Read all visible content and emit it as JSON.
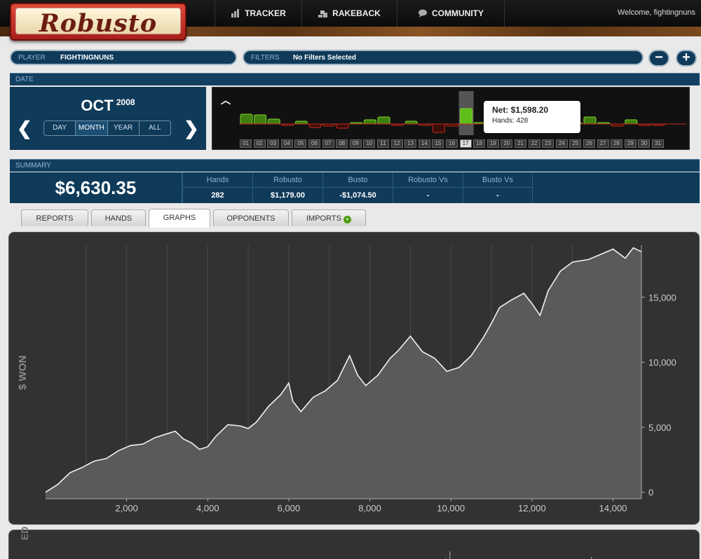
{
  "app": {
    "logo": "Robusto",
    "welcome": "Welcome, fightingnuns"
  },
  "nav": [
    {
      "label": "TRACKER",
      "icon": "bar-chart-icon"
    },
    {
      "label": "RAKEBACK",
      "icon": "chips-icon"
    },
    {
      "label": "COMMUNITY",
      "icon": "chat-icon"
    }
  ],
  "player": {
    "label": "PLAYER",
    "value": "FIGHTINGNUNS"
  },
  "filters": {
    "label": "FILTERS",
    "value": "No Filters Selected"
  },
  "buttons": {
    "minus": "−",
    "plus": "+"
  },
  "date": {
    "section": "DATE",
    "month": "OCT",
    "year": "2008",
    "ranges": [
      "DAY",
      "MONTH",
      "YEAR",
      "ALL"
    ],
    "active_range": "MONTH",
    "prev": "❮",
    "next": "❯",
    "collapse": "︿"
  },
  "calendar": {
    "days": [
      "01",
      "02",
      "03",
      "04",
      "05",
      "06",
      "07",
      "08",
      "09",
      "10",
      "11",
      "12",
      "13",
      "14",
      "15",
      "16",
      "17",
      "18",
      "19",
      "20",
      "21",
      "22",
      "23",
      "24",
      "25",
      "26",
      "27",
      "28",
      "29",
      "30",
      "31"
    ],
    "selected": "17",
    "net": [
      28,
      26,
      14,
      -2,
      8,
      -10,
      -6,
      -12,
      4,
      12,
      20,
      -3,
      8,
      -4,
      -24,
      -6,
      44,
      0,
      0,
      2,
      40,
      22,
      -3,
      -4,
      0,
      20,
      0,
      -6,
      12,
      -2,
      -2
    ],
    "colors": {
      "win": "#4f9d12",
      "loss": "#c82a1c"
    }
  },
  "tooltip": {
    "net": "Net: $1,598.20",
    "hands": "Hands: 428"
  },
  "summary": {
    "section": "SUMMARY",
    "total": "$6,630.35",
    "columns": [
      {
        "h": "Hands",
        "v": "282"
      },
      {
        "h": "Robusto",
        "v": "$1,179.00"
      },
      {
        "h": "Busto",
        "v": "-$1,074.50"
      },
      {
        "h": "Robusto Vs",
        "v": "-"
      },
      {
        "h": "Busto Vs",
        "v": "-"
      }
    ]
  },
  "tabs": [
    "REPORTS",
    "HANDS",
    "GRAPHS",
    "OPPONENTS",
    "IMPORTS"
  ],
  "active_tab": "GRAPHS",
  "chart_data": {
    "type": "line",
    "ylabel": "$ WON",
    "xlim": [
      0,
      14700
    ],
    "ylim": [
      -500,
      19000
    ],
    "xticks": [
      2000,
      4000,
      6000,
      8000,
      10000,
      12000,
      14000
    ],
    "xticklabels": [
      "2,000",
      "4,000",
      "6,000",
      "8,000",
      "10,000",
      "12,000",
      "14,000"
    ],
    "yticks": [
      0,
      5000,
      10000,
      15000
    ],
    "yticklabels": [
      "0",
      "5,000",
      "10,000",
      "15,000"
    ],
    "grid": "vertical",
    "series": [
      {
        "values": [
          [
            0,
            0
          ],
          [
            300,
            600
          ],
          [
            600,
            1500
          ],
          [
            900,
            1900
          ],
          [
            1200,
            2400
          ],
          [
            1500,
            2600
          ],
          [
            1800,
            3200
          ],
          [
            2100,
            3600
          ],
          [
            2400,
            3700
          ],
          [
            2700,
            4200
          ],
          [
            3000,
            4500
          ],
          [
            3200,
            4700
          ],
          [
            3400,
            4100
          ],
          [
            3600,
            3800
          ],
          [
            3800,
            3300
          ],
          [
            4000,
            3500
          ],
          [
            4200,
            4300
          ],
          [
            4500,
            5200
          ],
          [
            4800,
            5100
          ],
          [
            5000,
            4900
          ],
          [
            5200,
            5400
          ],
          [
            5500,
            6600
          ],
          [
            5800,
            7500
          ],
          [
            6000,
            8400
          ],
          [
            6100,
            7000
          ],
          [
            6300,
            6200
          ],
          [
            6600,
            7300
          ],
          [
            6900,
            7800
          ],
          [
            7200,
            8600
          ],
          [
            7500,
            10500
          ],
          [
            7700,
            9000
          ],
          [
            7900,
            8200
          ],
          [
            8200,
            9000
          ],
          [
            8500,
            10300
          ],
          [
            8700,
            10900
          ],
          [
            9000,
            12000
          ],
          [
            9300,
            10800
          ],
          [
            9600,
            10300
          ],
          [
            9900,
            9300
          ],
          [
            10200,
            9600
          ],
          [
            10500,
            10500
          ],
          [
            10800,
            11900
          ],
          [
            11000,
            13000
          ],
          [
            11200,
            14200
          ],
          [
            11500,
            14800
          ],
          [
            11800,
            15300
          ],
          [
            12000,
            14500
          ],
          [
            12200,
            13600
          ],
          [
            12400,
            15500
          ],
          [
            12700,
            17000
          ],
          [
            13000,
            17700
          ],
          [
            13400,
            17900
          ],
          [
            13700,
            18300
          ],
          [
            14000,
            18700
          ],
          [
            14300,
            18000
          ],
          [
            14500,
            18800
          ],
          [
            14700,
            18500
          ]
        ]
      }
    ]
  },
  "bottom": {
    "label": "ED"
  }
}
